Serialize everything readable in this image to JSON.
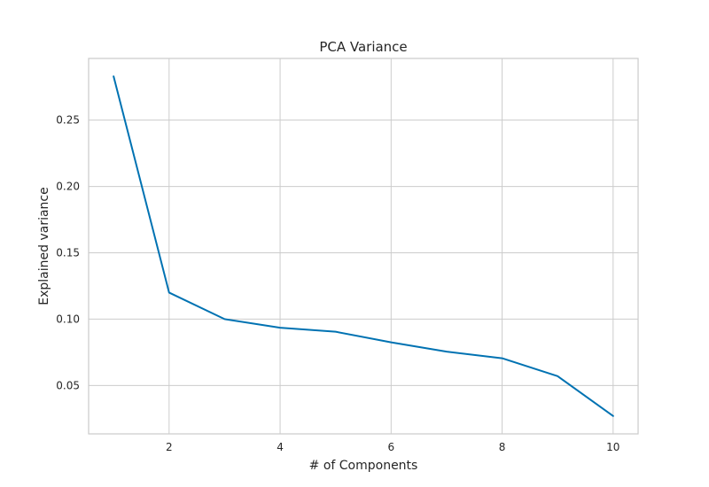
{
  "chart_data": {
    "type": "line",
    "title": "PCA Variance",
    "xlabel": "# of Components",
    "ylabel": "Explained variance",
    "xlim": [
      0.55,
      10.45
    ],
    "ylim": [
      0.0135,
      0.2965
    ],
    "x_ticks": [
      2,
      4,
      6,
      8,
      10
    ],
    "y_ticks": [
      0.05,
      0.1,
      0.15,
      0.2,
      0.25
    ],
    "x_tick_labels": [
      "2",
      "4",
      "6",
      "8",
      "10"
    ],
    "y_tick_labels": [
      "0.05",
      "0.10",
      "0.15",
      "0.20",
      "0.25"
    ],
    "grid": true,
    "series": [
      {
        "color": "#0072b2",
        "x": [
          1,
          2,
          3,
          4,
          5,
          6,
          7,
          8,
          9,
          10
        ],
        "values": [
          0.283,
          0.12,
          0.1,
          0.0935,
          0.0905,
          0.0825,
          0.0755,
          0.0705,
          0.057,
          0.027
        ]
      }
    ],
    "colors": {
      "grid": "#cccccc",
      "spine": "#cccccc",
      "text": "#262626"
    }
  }
}
